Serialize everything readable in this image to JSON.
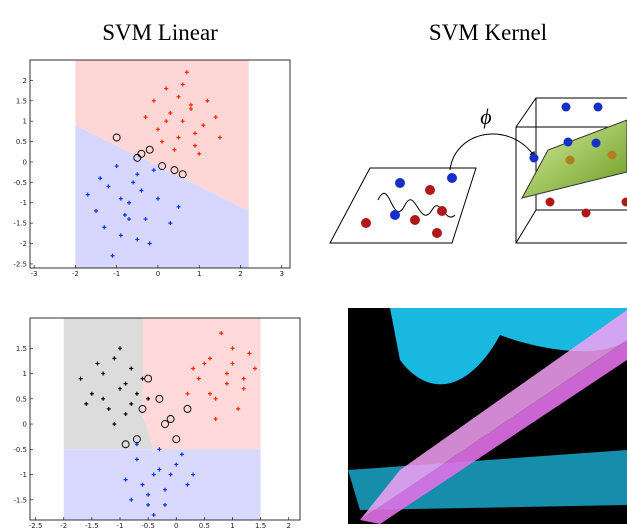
{
  "columns": [
    "SVM Linear",
    "SVM Kernel"
  ],
  "chart_data": [
    {
      "type": "scatter",
      "xlim": [
        -3.1,
        3.2
      ],
      "ylim": [
        -2.6,
        2.5
      ],
      "xticks": [
        -3,
        -2,
        -1,
        0,
        1,
        2,
        3
      ],
      "yticks": [
        -2.5,
        -2,
        -1.5,
        -1,
        -0.5,
        0,
        0.5,
        1,
        1.5,
        2
      ],
      "regions": [
        {
          "color": "#ffd6d6",
          "polygon": [
            [
              -2,
              2.5
            ],
            [
              2.2,
              2.5
            ],
            [
              2.2,
              -1.2
            ],
            [
              -2,
              0.9
            ]
          ]
        },
        {
          "color": "#d6d6ff",
          "polygon": [
            [
              -2,
              0.9
            ],
            [
              2.2,
              -1.2
            ],
            [
              2.2,
              -2.6
            ],
            [
              -2,
              -2.6
            ]
          ]
        }
      ],
      "series": [
        {
          "color": "#ff2200",
          "marker": "plus",
          "x": [
            0.2,
            0.8,
            0.5,
            1.1,
            -0.1,
            0.6,
            0.9,
            0.3,
            1.4,
            0.0,
            0.7,
            1.2,
            0.4,
            -0.3,
            0.9,
            0.5,
            1.0,
            0.2,
            0.6,
            1.5,
            0.8,
            0.1
          ],
          "values": [
            1.0,
            1.3,
            0.6,
            0.9,
            1.5,
            1.9,
            0.4,
            1.2,
            1.1,
            0.8,
            2.2,
            1.5,
            0.3,
            1.1,
            0.7,
            1.6,
            0.2,
            1.8,
            1.0,
            0.6,
            1.4,
            0.5
          ]
        },
        {
          "color": "#0033ff",
          "marker": "plus",
          "x": [
            -0.7,
            -1.2,
            -0.3,
            -0.9,
            -1.5,
            -0.5,
            0.0,
            -1.0,
            -0.2,
            -0.8,
            -1.7,
            -0.4,
            0.3,
            -1.1,
            -0.6,
            -1.3,
            -0.1,
            -0.9,
            -0.5,
            0.5,
            -1.4,
            -0.7
          ],
          "values": [
            -1.0,
            -0.6,
            -1.4,
            -1.8,
            -1.2,
            -0.3,
            -0.9,
            -0.1,
            -2.0,
            -1.3,
            -0.8,
            -0.7,
            -1.5,
            -2.3,
            -0.5,
            -1.6,
            -0.2,
            -0.9,
            -1.9,
            -1.1,
            -0.4,
            -1.4
          ]
        },
        {
          "color": "#000000",
          "marker": "ring",
          "x": [
            -1.0,
            -0.5,
            -0.2,
            0.1,
            0.4,
            0.6,
            -0.4
          ],
          "values": [
            0.6,
            0.1,
            0.3,
            -0.1,
            -0.2,
            -0.3,
            0.2
          ]
        }
      ]
    },
    {
      "type": "scatter",
      "xlim": [
        -2.6,
        2.2
      ],
      "ylim": [
        -1.9,
        2.1
      ],
      "xticks": [
        -2.5,
        -2,
        -1.5,
        -1,
        -0.5,
        0,
        0.5,
        1,
        1.5,
        2
      ],
      "yticks": [
        -1.5,
        -1,
        -0.5,
        0,
        0.5,
        1,
        1.5
      ],
      "regions": [
        {
          "color": "#dcdcdc",
          "polygon": [
            [
              -2,
              2.1
            ],
            [
              -0.6,
              2.1
            ],
            [
              -0.6,
              0.2
            ],
            [
              -0.4,
              -0.5
            ],
            [
              -2,
              -0.5
            ]
          ]
        },
        {
          "color": "#ffd9d9",
          "polygon": [
            [
              -0.6,
              2.1
            ],
            [
              1.5,
              2.1
            ],
            [
              1.5,
              -0.5
            ],
            [
              -0.4,
              -0.5
            ],
            [
              -0.6,
              0.2
            ]
          ]
        },
        {
          "color": "#d9d9ff",
          "polygon": [
            [
              -2,
              -0.5
            ],
            [
              1.5,
              -0.5
            ],
            [
              1.5,
              -1.9
            ],
            [
              -2,
              -1.9
            ]
          ]
        }
      ],
      "series": [
        {
          "color": "#000000",
          "marker": "plus",
          "x": [
            -1.0,
            -1.3,
            -0.8,
            -1.5,
            -0.6,
            -1.1,
            -0.9,
            -1.7,
            -0.7,
            -1.2,
            -0.5,
            -1.4,
            -1.0,
            -0.8,
            -1.6,
            -1.1,
            -0.9,
            -1.3
          ],
          "values": [
            0.7,
            1.0,
            0.4,
            0.6,
            0.9,
            1.3,
            0.2,
            0.9,
            0.6,
            0.3,
            0.5,
            1.2,
            1.5,
            1.1,
            0.4,
            0.0,
            0.8,
            0.5
          ]
        },
        {
          "color": "#ff2200",
          "marker": "plus",
          "x": [
            0.9,
            0.6,
            1.2,
            0.4,
            1.0,
            0.7,
            1.4,
            0.2,
            0.8,
            1.1,
            0.5,
            1.3,
            0.9,
            0.3,
            0.7,
            1.0,
            0.6,
            1.2
          ],
          "values": [
            1.0,
            1.3,
            0.7,
            0.9,
            1.5,
            0.5,
            1.1,
            0.6,
            1.8,
            0.3,
            1.2,
            1.4,
            0.8,
            1.1,
            0.1,
            1.2,
            0.6,
            0.9
          ]
        },
        {
          "color": "#0033ff",
          "marker": "plus",
          "x": [
            -0.4,
            -0.7,
            -0.2,
            -0.9,
            0.0,
            -0.5,
            -0.3,
            0.2,
            -0.8,
            -0.1,
            -0.6,
            -0.4,
            0.1,
            -0.3,
            -0.7,
            -0.5,
            0.3,
            -0.2
          ],
          "values": [
            -1.0,
            -0.7,
            -1.3,
            -1.1,
            -0.8,
            -1.6,
            -0.5,
            -1.2,
            -1.5,
            -1.0,
            -1.2,
            -1.8,
            -0.6,
            -0.9,
            -0.4,
            -1.4,
            -1.0,
            -1.6
          ]
        },
        {
          "color": "#000000",
          "marker": "ring",
          "x": [
            -0.6,
            -0.3,
            -0.5,
            -0.1,
            0.2,
            -0.7,
            -0.9,
            0.0,
            -0.2
          ],
          "values": [
            0.3,
            0.5,
            0.9,
            0.1,
            0.3,
            -0.3,
            -0.4,
            -0.3,
            0.0
          ]
        }
      ]
    }
  ],
  "diagram": {
    "label": "ϕ"
  }
}
